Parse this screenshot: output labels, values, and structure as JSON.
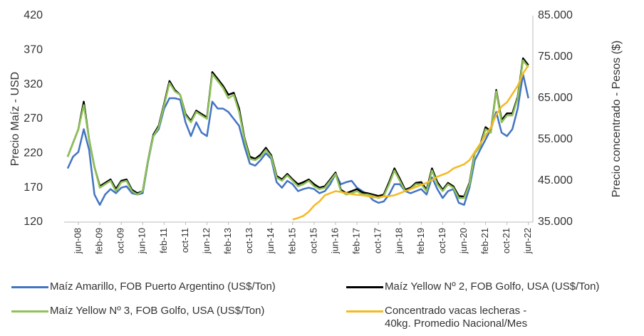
{
  "chart_data": {
    "type": "line",
    "ylabel": "Precio  Maíz - USD",
    "y2label": "Precio concentrado - Pesos ($)",
    "categories": [
      null,
      null,
      "jun-08",
      null,
      null,
      null,
      "feb-09",
      null,
      null,
      null,
      "oct-09",
      null,
      null,
      null,
      "jun-10",
      null,
      null,
      null,
      "feb-11",
      null,
      null,
      null,
      "oct-11",
      null,
      null,
      null,
      "jun-12",
      null,
      null,
      null,
      "feb-13",
      null,
      null,
      null,
      "oct-13",
      null,
      null,
      null,
      "jun-14",
      null,
      null,
      null,
      "feb-15",
      null,
      null,
      null,
      "oct-15",
      null,
      null,
      null,
      "jun-16",
      null,
      null,
      null,
      "feb-17",
      null,
      null,
      null,
      "oct-17",
      null,
      null,
      null,
      "jun-18",
      null,
      null,
      null,
      "feb-19",
      null,
      null,
      null,
      "oct-19",
      null,
      null,
      null,
      "jun-20",
      null,
      null,
      null,
      "feb-21",
      null,
      null,
      null,
      "oct-21",
      null,
      null,
      null,
      "jun-22"
    ],
    "ylim": [
      120,
      420
    ],
    "yticks": [
      120,
      170,
      220,
      270,
      320,
      370,
      420
    ],
    "y2lim": [
      35000,
      85000
    ],
    "y2ticks": [
      {
        "value": 35000,
        "label": "35.000"
      },
      {
        "value": 45000,
        "label": "45.000"
      },
      {
        "value": 55000,
        "label": "55.000"
      },
      {
        "value": 65000,
        "label": "65.000"
      },
      {
        "value": 75000,
        "label": "75.000"
      },
      {
        "value": 85000,
        "label": "85.000"
      }
    ],
    "series": [
      {
        "name": "Maíz Amarillo, FOB Puerto Argentino (US$/Ton)",
        "color": "#4374c3",
        "values": [
          198,
          215,
          222,
          255,
          225,
          160,
          145,
          160,
          168,
          162,
          170,
          172,
          162,
          160,
          162,
          208,
          245,
          255,
          285,
          300,
          300,
          298,
          265,
          245,
          265,
          250,
          245,
          295,
          285,
          285,
          280,
          270,
          260,
          230,
          205,
          202,
          210,
          220,
          212,
          178,
          170,
          180,
          175,
          165,
          168,
          170,
          168,
          162,
          165,
          175,
          190,
          175,
          178,
          180,
          170,
          165,
          160,
          152,
          148,
          150,
          160,
          175,
          175,
          165,
          162,
          165,
          168,
          160,
          185,
          168,
          155,
          165,
          168,
          148,
          145,
          170,
          210,
          225,
          240,
          255,
          280,
          250,
          245,
          255,
          285,
          335,
          300
        ]
      },
      {
        "name": "Maíz Yellow Nº 2, FOB Golfo, USA (US$/Ton)",
        "color": "#000000",
        "values": [
          215,
          235,
          255,
          295,
          240,
          200,
          172,
          177,
          182,
          168,
          180,
          182,
          167,
          162,
          165,
          210,
          247,
          260,
          292,
          325,
          312,
          305,
          277,
          267,
          282,
          277,
          272,
          338,
          328,
          318,
          305,
          308,
          285,
          242,
          215,
          212,
          218,
          228,
          217,
          187,
          182,
          190,
          182,
          175,
          178,
          182,
          175,
          170,
          172,
          182,
          192,
          167,
          162,
          165,
          168,
          163,
          162,
          160,
          158,
          160,
          178,
          198,
          183,
          167,
          170,
          177,
          178,
          167,
          198,
          178,
          167,
          177,
          172,
          158,
          157,
          177,
          222,
          232,
          258,
          252,
          312,
          268,
          278,
          278,
          302,
          358,
          348
        ]
      },
      {
        "name": "Maíz Yellow Nº 3, FOB Golfo, USA (US$/Ton)",
        "color": "#8fc257",
        "values": [
          215,
          235,
          255,
          290,
          240,
          200,
          170,
          175,
          180,
          165,
          178,
          180,
          165,
          160,
          165,
          210,
          245,
          258,
          290,
          322,
          310,
          305,
          275,
          265,
          280,
          275,
          270,
          335,
          325,
          315,
          300,
          305,
          280,
          240,
          212,
          210,
          215,
          225,
          215,
          185,
          180,
          188,
          180,
          172,
          175,
          180,
          172,
          168,
          170,
          180,
          190,
          165,
          160,
          162,
          165,
          160,
          160,
          158,
          155,
          158,
          175,
          195,
          180,
          165,
          168,
          175,
          175,
          165,
          195,
          175,
          165,
          175,
          170,
          155,
          155,
          175,
          220,
          230,
          255,
          250,
          310,
          265,
          275,
          275,
          300,
          355,
          345
        ]
      },
      {
        "name": "Concentrado vacas lecheras - 40kg. Promedio Nacional/Mes",
        "color": "#f6b923",
        "axis": "y2",
        "values": [
          null,
          null,
          null,
          null,
          null,
          null,
          null,
          null,
          null,
          null,
          null,
          null,
          null,
          null,
          null,
          null,
          null,
          null,
          null,
          null,
          null,
          null,
          null,
          null,
          null,
          null,
          null,
          null,
          null,
          null,
          null,
          null,
          null,
          null,
          null,
          null,
          null,
          null,
          null,
          null,
          null,
          null,
          35600,
          36000,
          36500,
          37500,
          39000,
          40000,
          41500,
          42000,
          42500,
          42300,
          42000,
          41800,
          41600,
          41500,
          41300,
          41000,
          41000,
          41200,
          41300,
          41500,
          42000,
          42500,
          43000,
          43500,
          44000,
          44500,
          45200,
          46000,
          46500,
          47000,
          48000,
          48500,
          49000,
          50000,
          52000,
          54000,
          56000,
          58000,
          61000,
          63000,
          64000,
          66000,
          68000,
          71000,
          73000
        ]
      }
    ]
  }
}
